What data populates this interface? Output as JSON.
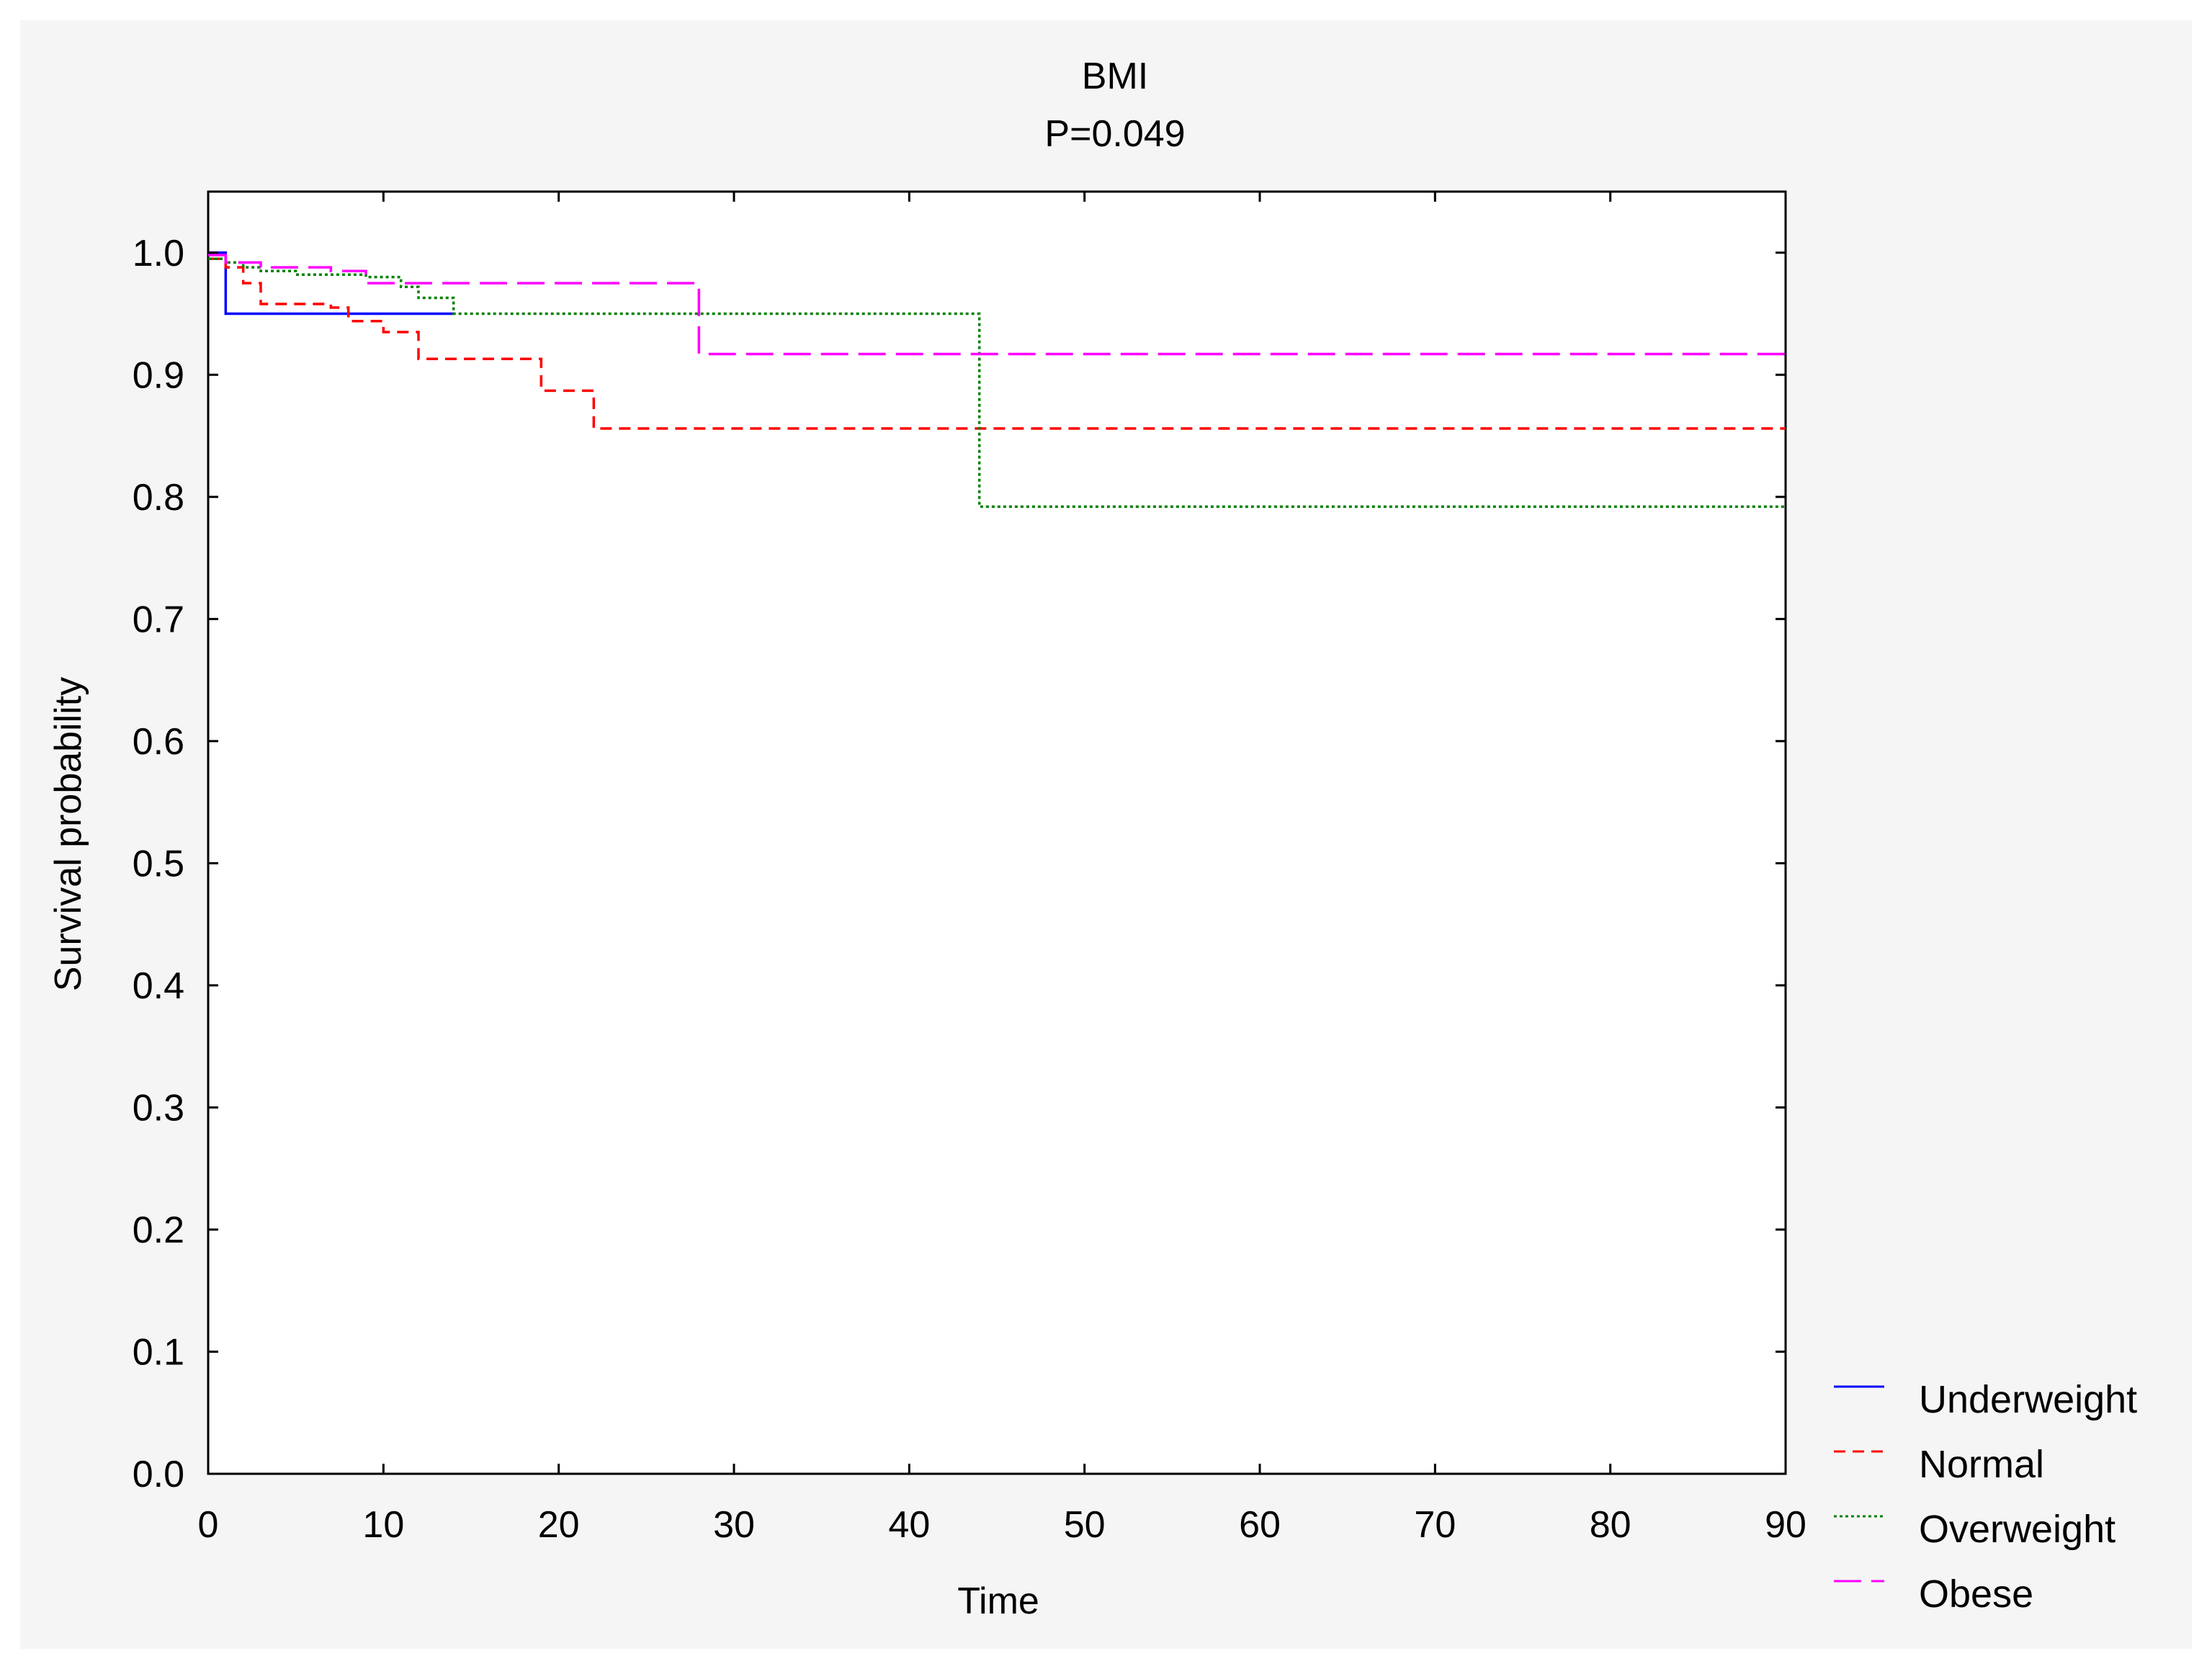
{
  "chart_data": {
    "type": "line",
    "title": "BMI",
    "subtitle": "P=0.049",
    "xlabel": "Time",
    "ylabel": "Survival probability",
    "xlim": [
      0,
      90
    ],
    "ylim": [
      0,
      1.05
    ],
    "xticks": [
      "0",
      "10",
      "20",
      "30",
      "40",
      "50",
      "60",
      "70",
      "80",
      "90"
    ],
    "yticks": [
      "0.0",
      "0.1",
      "0.2",
      "0.3",
      "0.4",
      "0.5",
      "0.6",
      "0.7",
      "0.8",
      "0.9",
      "1.0"
    ],
    "grid": false,
    "legend_position": "bottom-right",
    "step": true,
    "series": [
      {
        "name": "Underweight",
        "color": "#0000ff",
        "dash": "solid",
        "x": [
          0,
          1,
          14
        ],
        "y": [
          1.0,
          0.95,
          0.95
        ]
      },
      {
        "name": "Normal",
        "color": "#ff0000",
        "dash": "dashed",
        "x": [
          0,
          1,
          2,
          3,
          7,
          8,
          10,
          12,
          19,
          22,
          90
        ],
        "y": [
          0.995,
          0.988,
          0.975,
          0.958,
          0.955,
          0.944,
          0.935,
          0.913,
          0.887,
          0.856,
          0.856
        ]
      },
      {
        "name": "Overweight",
        "color": "#008000",
        "dash": "dotted",
        "x": [
          0,
          1,
          2,
          3,
          5,
          9,
          11,
          12,
          14,
          44,
          90
        ],
        "y": [
          0.995,
          0.992,
          0.988,
          0.985,
          0.982,
          0.98,
          0.972,
          0.963,
          0.95,
          0.792,
          0.792
        ]
      },
      {
        "name": "Obese",
        "color": "#ff00ff",
        "dash": "longdash",
        "x": [
          0,
          1,
          3,
          7,
          9,
          28,
          90
        ],
        "y": [
          0.998,
          0.992,
          0.988,
          0.985,
          0.975,
          0.917,
          0.917
        ]
      }
    ]
  }
}
